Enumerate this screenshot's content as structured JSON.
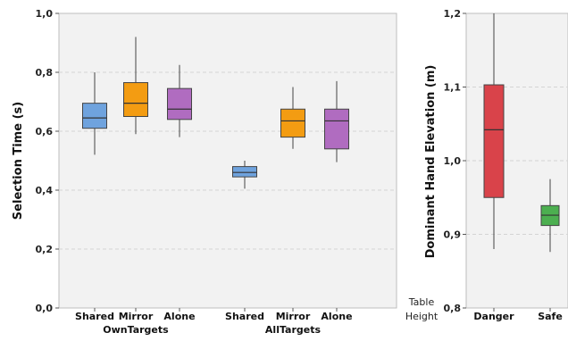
{
  "chart_data": [
    {
      "type": "box",
      "ylabel": "Selection Time (s)",
      "ylim": [
        0,
        1
      ],
      "yticks": [
        0,
        0.2,
        0.4,
        0.6,
        0.8,
        1.0
      ],
      "ytick_labels": [
        "0,0",
        "0,2",
        "0,4",
        "0,6",
        "0,8",
        "1,0"
      ],
      "grid": true,
      "groups": [
        {
          "label": "OwnTargets",
          "boxes": [
            {
              "label": "Shared",
              "color": "#6fa3de",
              "min": 0.52,
              "q1": 0.61,
              "median": 0.645,
              "q3": 0.695,
              "max": 0.8
            },
            {
              "label": "Mirror",
              "color": "#f39c12",
              "min": 0.59,
              "q1": 0.65,
              "median": 0.695,
              "q3": 0.765,
              "max": 0.92
            },
            {
              "label": "Alone",
              "color": "#b06cc0",
              "min": 0.58,
              "q1": 0.64,
              "median": 0.675,
              "q3": 0.745,
              "max": 0.825
            }
          ]
        },
        {
          "label": "AllTargets",
          "boxes": [
            {
              "label": "Shared",
              "color": "#6fa3de",
              "min": 0.405,
              "q1": 0.445,
              "median": 0.46,
              "q3": 0.48,
              "max": 0.5
            },
            {
              "label": "Mirror",
              "color": "#f39c12",
              "min": 0.54,
              "q1": 0.58,
              "median": 0.635,
              "q3": 0.675,
              "max": 0.75
            },
            {
              "label": "Alone",
              "color": "#b06cc0",
              "min": 0.495,
              "q1": 0.54,
              "median": 0.635,
              "q3": 0.675,
              "max": 0.77
            }
          ]
        }
      ]
    },
    {
      "type": "box",
      "ylabel": "Dominant Hand Elevation (m)",
      "ylim": [
        0.8,
        1.2
      ],
      "yticks": [
        0.8,
        0.9,
        1.0,
        1.1,
        1.2
      ],
      "ytick_labels": [
        "0,8",
        "0,9",
        "1,0",
        "1,1",
        "1,2"
      ],
      "grid": true,
      "annotation": [
        "Table",
        "Height"
      ],
      "boxes": [
        {
          "label": "Danger",
          "color": "#d9434a",
          "min": 0.88,
          "q1": 0.95,
          "median": 1.042,
          "q3": 1.103,
          "max": 1.2
        },
        {
          "label": "Safe",
          "color": "#4caf50",
          "min": 0.876,
          "q1": 0.912,
          "median": 0.926,
          "q3": 0.939,
          "max": 0.975
        }
      ]
    }
  ]
}
